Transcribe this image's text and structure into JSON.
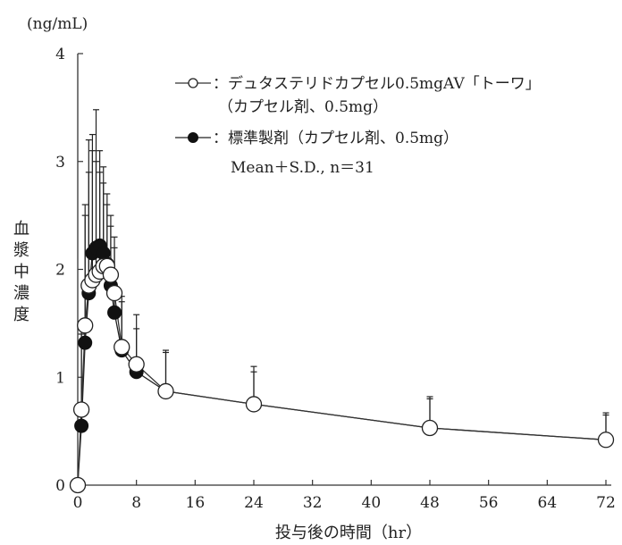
{
  "chart_data": {
    "type": "line",
    "unit_label": "(ng/mL)",
    "ylabel": "血漿中濃度",
    "xlabel": "投与後の時間（hr）",
    "xlim": [
      0,
      72
    ],
    "ylim": [
      0,
      4
    ],
    "x_ticks": [
      0,
      8,
      16,
      24,
      32,
      40,
      48,
      56,
      64,
      72
    ],
    "y_ticks": [
      0,
      1,
      2,
      3,
      4
    ],
    "grid": false,
    "legend_position": "top-right",
    "legend": {
      "test_line1": "：デュタステリドカプセル0.5mgAV「トーワ」",
      "test_line2": "（カプセル剤、0.5mg）",
      "ref_line1": "：標準製剤（カプセル剤、0.5mg）",
      "stats": "Mean＋S.D., n＝31"
    },
    "x": [
      0,
      0.5,
      1,
      1.5,
      2,
      2.5,
      3,
      3.5,
      4,
      4.5,
      5,
      6,
      8,
      12,
      24,
      48,
      72
    ],
    "series": [
      {
        "name": "デュタステリドカプセル0.5mgAV「トーワ」",
        "marker": "open-circle",
        "values": [
          0,
          0.7,
          1.48,
          1.85,
          1.9,
          1.95,
          1.98,
          2.03,
          2.03,
          1.95,
          1.78,
          1.28,
          1.12,
          0.87,
          0.75,
          0.53,
          0.42
        ],
        "sd_upper": [
          0,
          1.5,
          2.5,
          2.9,
          3.1,
          3.0,
          2.9,
          2.8,
          2.6,
          2.4,
          2.2,
          1.75,
          1.58,
          1.25,
          1.1,
          0.82,
          0.67
        ]
      },
      {
        "name": "標準製剤",
        "marker": "filled-circle",
        "values": [
          0,
          0.55,
          1.32,
          1.78,
          2.15,
          2.2,
          2.22,
          2.15,
          2.05,
          1.85,
          1.6,
          1.25,
          1.05,
          0.87,
          0.75,
          0.53,
          0.42
        ],
        "sd_upper": [
          0,
          1.4,
          2.6,
          3.2,
          3.25,
          3.48,
          3.1,
          2.95,
          2.7,
          2.5,
          2.3,
          1.7,
          1.45,
          1.23,
          1.05,
          0.8,
          0.65
        ]
      }
    ]
  }
}
